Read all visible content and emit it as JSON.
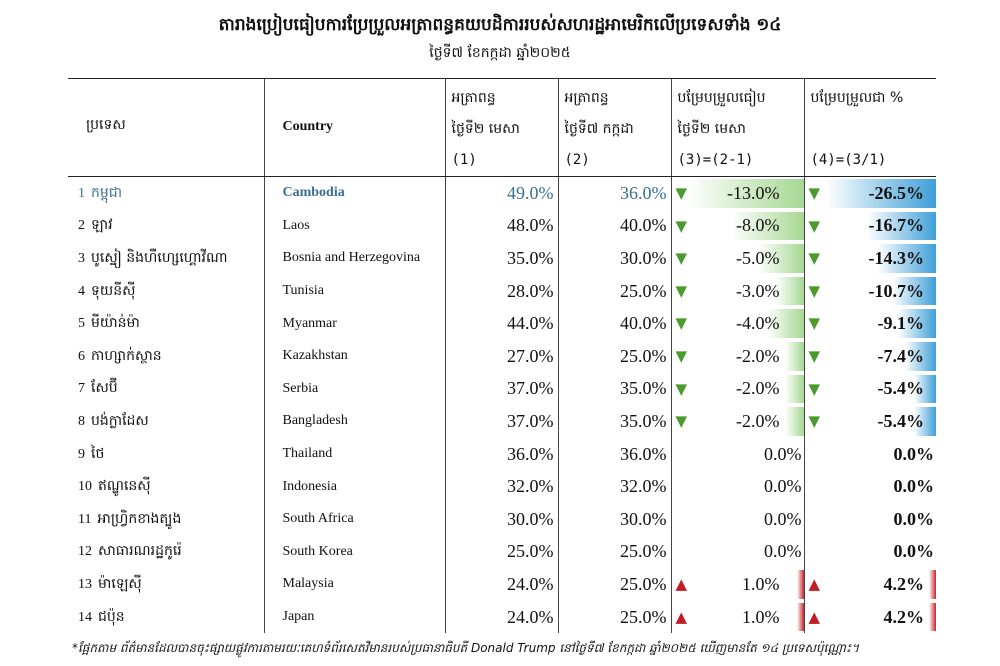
{
  "title": "តារាងប្រៀបធៀបការប្រែប្រួលអត្រាពន្ធគយបដិការរបស់សហរដ្ឋអាមេរិកលើប្រទេសទាំង ១៤",
  "subtitle": "ថ្ងៃទី៧ ខែកក្កដា ឆ្នាំ២០២៥",
  "headers": {
    "khmer": "ប្រទេស",
    "country": "Country",
    "rate1": [
      "អត្រាពន្ធ",
      "ថ្ងៃទី២ មេសា",
      "(1)"
    ],
    "rate2": [
      "អត្រាពន្ធ",
      "ថ្ងៃទី៧ កក្កដា",
      "(2)"
    ],
    "diff": [
      "បម្រែបម្រួលធៀប",
      "ថ្ងៃទី២ មេសា",
      "(3)=(2-1)"
    ],
    "pct": [
      "បម្រែបម្រួលជា %",
      "",
      "(4)=(3/1)"
    ]
  },
  "colors": {
    "highlight_text": "#3a6f93",
    "down_arrow": "#4a9a2e",
    "up_arrow": "#c01d24",
    "diff_bar": "#a6d893",
    "pct_bar": "#3f9fd8",
    "pos_bar": "#c7262c"
  },
  "icons": {
    "down": "triangle-down-icon",
    "up": "triangle-up-icon"
  },
  "rows": [
    {
      "no": "1",
      "khmer": "កម្ពុជា",
      "country": "Cambodia",
      "r1": "49.0%",
      "r2": "36.0%",
      "diff": "-13.0%",
      "pct": "-26.5%",
      "diff_val": -13.0,
      "pct_val": -26.5,
      "highlight": true
    },
    {
      "no": "2",
      "khmer": "ឡាវ",
      "country": "Laos",
      "r1": "48.0%",
      "r2": "40.0%",
      "diff": "-8.0%",
      "pct": "-16.7%",
      "diff_val": -8.0,
      "pct_val": -16.7
    },
    {
      "no": "3",
      "khmer": "បូស្នៀ និងហឺហ្សេហ្គោវីណា",
      "country": "Bosnia and Herzegovina",
      "r1": "35.0%",
      "r2": "30.0%",
      "diff": "-5.0%",
      "pct": "-14.3%",
      "diff_val": -5.0,
      "pct_val": -14.3
    },
    {
      "no": "4",
      "khmer": "ទុយនីស៊ី",
      "country": "Tunisia",
      "r1": "28.0%",
      "r2": "25.0%",
      "diff": "-3.0%",
      "pct": "-10.7%",
      "diff_val": -3.0,
      "pct_val": -10.7
    },
    {
      "no": "5",
      "khmer": "មីយ៉ាន់ម៉ា",
      "country": "Myanmar",
      "r1": "44.0%",
      "r2": "40.0%",
      "diff": "-4.0%",
      "pct": "-9.1%",
      "diff_val": -4.0,
      "pct_val": -9.1
    },
    {
      "no": "6",
      "khmer": "កាហ្សាក់ស្ថាន",
      "country": "Kazakhstan",
      "r1": "27.0%",
      "r2": "25.0%",
      "diff": "-2.0%",
      "pct": "-7.4%",
      "diff_val": -2.0,
      "pct_val": -7.4
    },
    {
      "no": "7",
      "khmer": "សែប៊ី",
      "country": "Serbia",
      "r1": "37.0%",
      "r2": "35.0%",
      "diff": "-2.0%",
      "pct": "-5.4%",
      "diff_val": -2.0,
      "pct_val": -5.4
    },
    {
      "no": "8",
      "khmer": "បង់ក្លាដែស",
      "country": "Bangladesh",
      "r1": "37.0%",
      "r2": "35.0%",
      "diff": "-2.0%",
      "pct": "-5.4%",
      "diff_val": -2.0,
      "pct_val": -5.4
    },
    {
      "no": "9",
      "khmer": "ថៃ",
      "country": "Thailand",
      "r1": "36.0%",
      "r2": "36.0%",
      "diff": "0.0%",
      "pct": "0.0%",
      "diff_val": 0,
      "pct_val": 0
    },
    {
      "no": "10",
      "khmer": "ឥណ្ឌូនេស៊ី",
      "country": "Indonesia",
      "r1": "32.0%",
      "r2": "32.0%",
      "diff": "0.0%",
      "pct": "0.0%",
      "diff_val": 0,
      "pct_val": 0
    },
    {
      "no": "11",
      "khmer": "អាហ្វ្រិកខាងត្បូង",
      "country": "South Africa",
      "r1": "30.0%",
      "r2": "30.0%",
      "diff": "0.0%",
      "pct": "0.0%",
      "diff_val": 0,
      "pct_val": 0
    },
    {
      "no": "12",
      "khmer": "សាធារណរដ្ឋកូរ៉េ",
      "country": "South Korea",
      "r1": "25.0%",
      "r2": "25.0%",
      "diff": "0.0%",
      "pct": "0.0%",
      "diff_val": 0,
      "pct_val": 0
    },
    {
      "no": "13",
      "khmer": "ម៉ាឡេស៊ី",
      "country": "Malaysia",
      "r1": "24.0%",
      "r2": "25.0%",
      "diff": "1.0%",
      "pct": "4.2%",
      "diff_val": 1.0,
      "pct_val": 4.2
    },
    {
      "no": "14",
      "khmer": "ជប៉ុន",
      "country": "Japan",
      "r1": "24.0%",
      "r2": "25.0%",
      "diff": "1.0%",
      "pct": "4.2%",
      "diff_val": 1.0,
      "pct_val": 4.2
    }
  ],
  "footnote": "*ផ្អែកតាម ព័ត៌មានដែលបានចុះផ្សាយផ្លូវការតាមរយៈគេហទំព័រសេតវិមានរបស់ប្រធានាធិបតី Donald Trump នៅថ្ងៃទី៧ ខែកក្កដា ឆ្នាំ២០២៥ ឃើញមានតែ ១៤ ប្រទេសប៉ុណ្ណោះ។"
}
